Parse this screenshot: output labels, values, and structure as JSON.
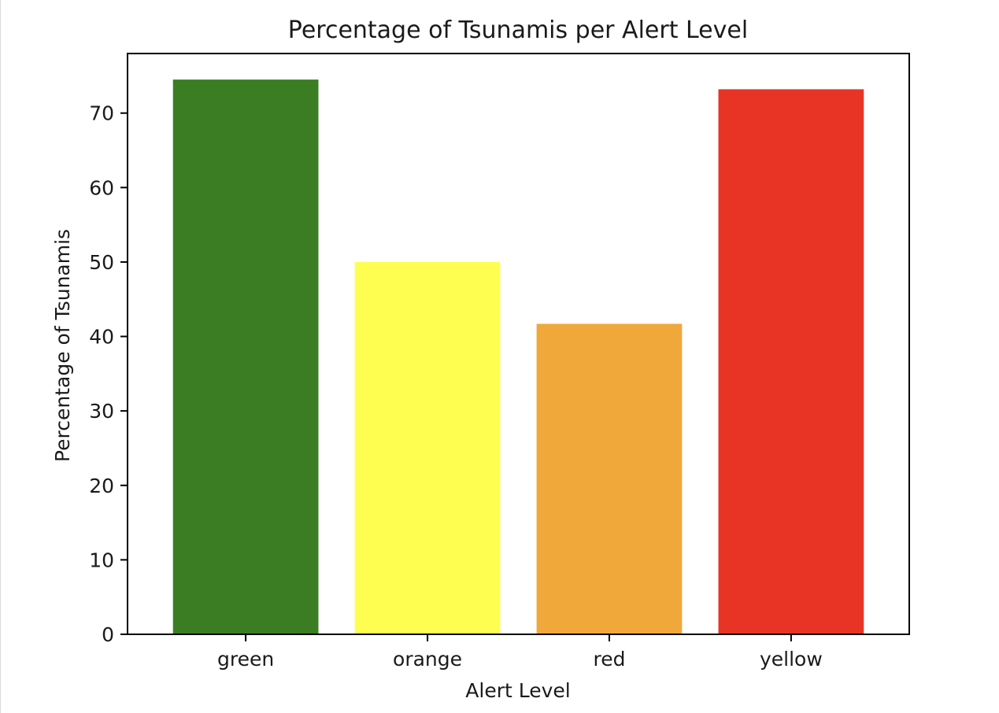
{
  "chart_data": {
    "type": "bar",
    "title": "Percentage of Tsunamis per Alert Level",
    "xlabel": "Alert Level",
    "ylabel": "Percentage of Tsunamis",
    "categories": [
      "green",
      "orange",
      "red",
      "yellow"
    ],
    "values": [
      74.5,
      50.0,
      41.7,
      73.2
    ],
    "colors": [
      "#3a7d22",
      "#fefe50",
      "#f0a83b",
      "#e83425"
    ],
    "ylim": [
      0,
      78
    ],
    "yticks": [
      0,
      10,
      20,
      30,
      40,
      50,
      60,
      70
    ],
    "grid": false,
    "legend": "none"
  }
}
